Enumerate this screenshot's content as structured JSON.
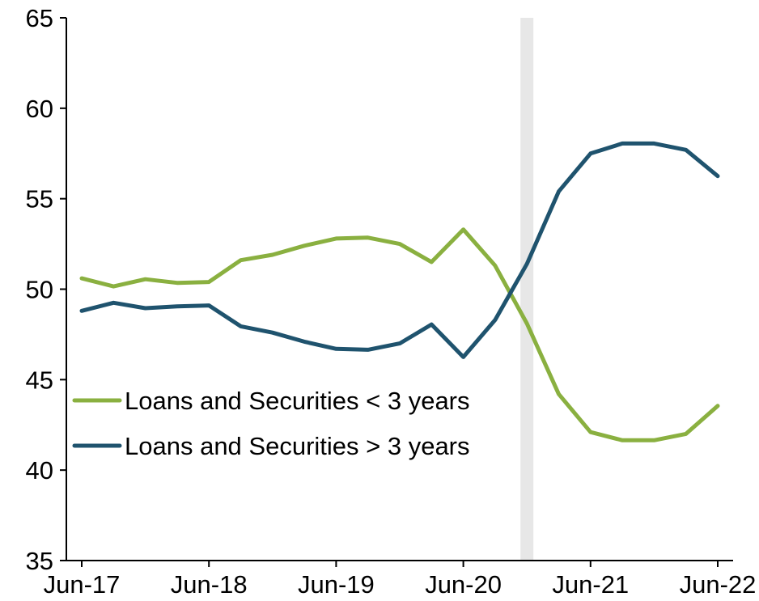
{
  "chart_data": {
    "type": "line",
    "title": "",
    "xlabel": "",
    "ylabel": "",
    "x": [
      "Jun-17",
      "Sep-17",
      "Dec-17",
      "Mar-18",
      "Jun-18",
      "Sep-18",
      "Dec-18",
      "Mar-19",
      "Jun-19",
      "Sep-19",
      "Dec-19",
      "Mar-20",
      "Jun-20",
      "Sep-20",
      "Dec-20",
      "Mar-21",
      "Jun-21",
      "Sep-21",
      "Dec-21",
      "Mar-22",
      "Jun-22"
    ],
    "x_tick_labels": [
      "Jun-17",
      "Jun-18",
      "Jun-19",
      "Jun-20",
      "Jun-21",
      "Jun-22"
    ],
    "y_ticks": [
      35,
      40,
      45,
      50,
      55,
      60,
      65
    ],
    "ylim": [
      35,
      65
    ],
    "grid": false,
    "legend_position": "lower-left",
    "shaded_period": {
      "start": "Dec-20",
      "color": "#e7e7e7"
    },
    "series": [
      {
        "name": "Loans and Securities < 3 years",
        "color": "#8ab040",
        "values": [
          50.6,
          50.15,
          50.55,
          50.35,
          50.4,
          51.6,
          51.9,
          52.4,
          52.8,
          52.85,
          52.5,
          51.5,
          53.3,
          51.3,
          48.1,
          44.2,
          42.1,
          41.65,
          41.65,
          42.0,
          43.55
        ]
      },
      {
        "name": "Loans and Securities > 3 years",
        "color": "#1f536e",
        "values": [
          48.8,
          49.25,
          48.95,
          49.05,
          49.1,
          47.95,
          47.6,
          47.1,
          46.7,
          46.65,
          47.0,
          48.05,
          46.25,
          48.3,
          51.4,
          55.4,
          57.5,
          58.05,
          58.05,
          57.7,
          56.25
        ]
      }
    ]
  }
}
